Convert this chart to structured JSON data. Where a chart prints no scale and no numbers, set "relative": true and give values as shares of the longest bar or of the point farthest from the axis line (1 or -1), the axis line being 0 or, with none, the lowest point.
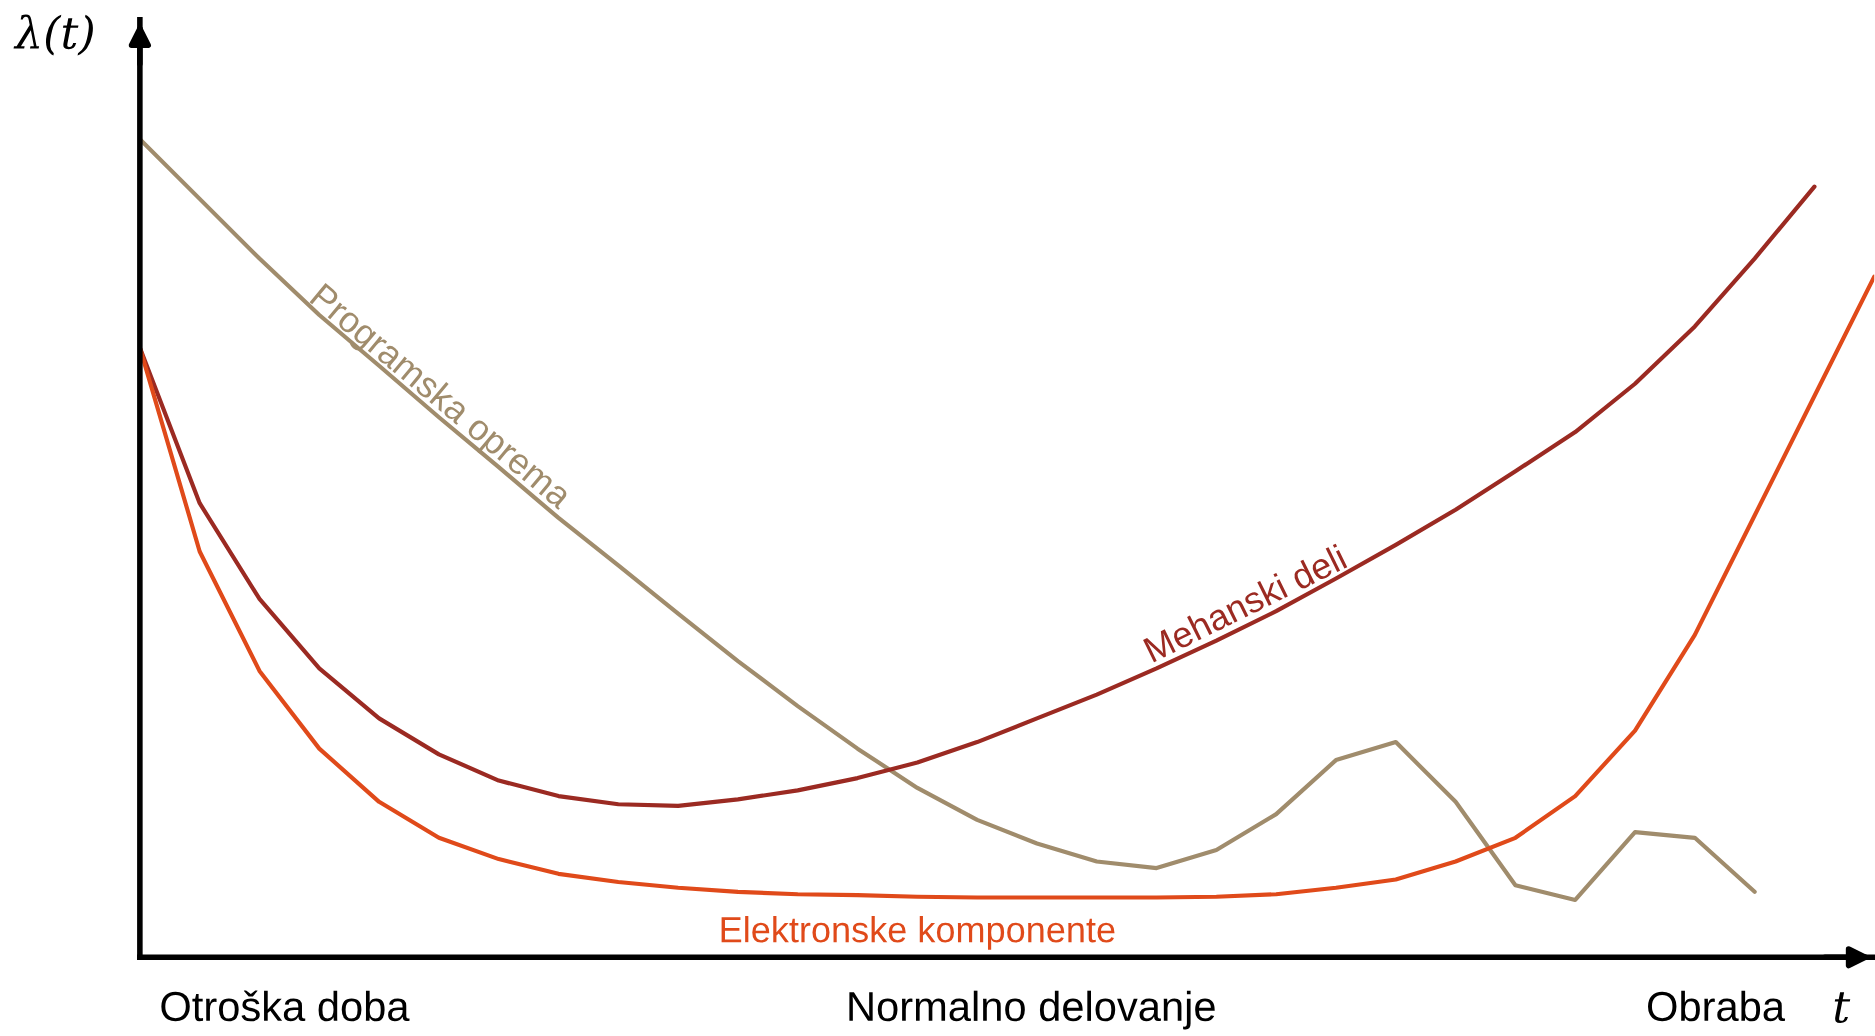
{
  "chart_data": {
    "type": "line",
    "relative": true,
    "xlabel": "t",
    "ylabel": "λ(t)",
    "legend": false,
    "marker": "none",
    "line_style": "solid",
    "categories": [
      null,
      null,
      null,
      null,
      null,
      null,
      null,
      null,
      null,
      null,
      null,
      null,
      null,
      null,
      null,
      null,
      null,
      null,
      null,
      null,
      null,
      null,
      null,
      null,
      null,
      null,
      null,
      null,
      null,
      null
    ],
    "series": [
      {
        "name": "Programska oprema",
        "color": "#a08c6c",
        "values": [
          1.0,
          0.927,
          0.854,
          0.785,
          0.723,
          0.66,
          0.599,
          0.537,
          0.479,
          0.42,
          0.362,
          0.307,
          0.255,
          0.207,
          0.168,
          0.139,
          0.117,
          0.109,
          0.131,
          0.175,
          0.241,
          0.263,
          0.19,
          0.088,
          0.07,
          0.153,
          0.146,
          0.08,
          null,
          null
        ]
      },
      {
        "name": "Mehanski deli",
        "color": "#9b2a22",
        "values": [
          0.745,
          0.555,
          0.438,
          0.353,
          0.292,
          0.248,
          0.216,
          0.197,
          0.187,
          0.185,
          0.193,
          0.204,
          0.219,
          0.238,
          0.263,
          0.292,
          0.321,
          0.353,
          0.387,
          0.423,
          0.463,
          0.504,
          0.547,
          0.594,
          0.642,
          0.701,
          0.771,
          0.854,
          0.942,
          null
        ]
      },
      {
        "name": "Elektronske komponente",
        "color": "#e04a1a",
        "values": [
          0.745,
          0.496,
          0.35,
          0.255,
          0.19,
          0.146,
          0.12,
          0.102,
          0.092,
          0.085,
          0.08,
          0.077,
          0.076,
          0.074,
          0.073,
          0.073,
          0.073,
          0.073,
          0.074,
          0.077,
          0.085,
          0.095,
          0.117,
          0.146,
          0.197,
          0.277,
          0.394,
          0.54,
          0.686,
          0.832
        ]
      }
    ],
    "annotations": [
      "Otroška doba",
      "Normalno delovanje",
      "Obraba"
    ]
  }
}
